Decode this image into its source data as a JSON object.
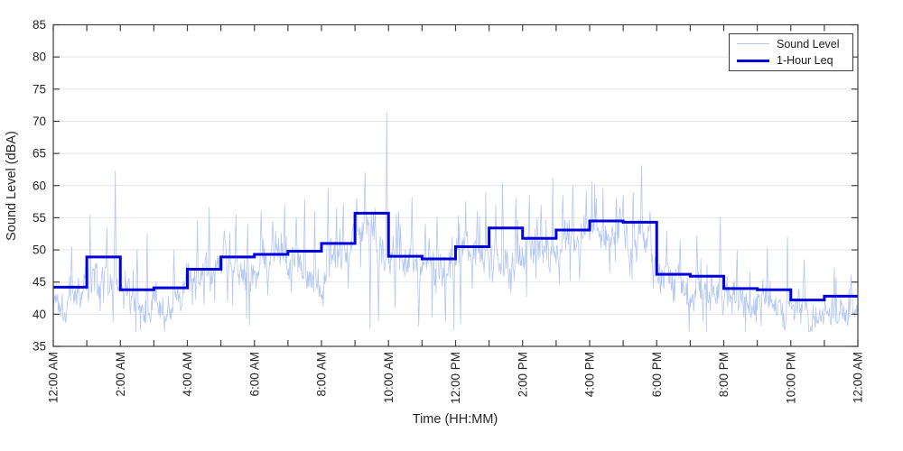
{
  "chart_data": {
    "type": "line",
    "title": "",
    "xlabel": "Time (HH:MM)",
    "ylabel": "Sound Level (dBA)",
    "ylim": [
      35,
      85
    ],
    "yticks": [
      35,
      40,
      45,
      50,
      55,
      60,
      65,
      70,
      75,
      80,
      85
    ],
    "x_hours_range": [
      0,
      24
    ],
    "x_minor_tick_hours": 1,
    "x_major_label_every_hours": 2,
    "xtick_labels": [
      "12:00 AM",
      "2:00 AM",
      "4:00 AM",
      "6:00 AM",
      "8:00 AM",
      "10:00 AM",
      "12:00 PM",
      "2:00 PM",
      "4:00 PM",
      "6:00 PM",
      "8:00 PM",
      "10:00 PM",
      "12:00 AM"
    ],
    "grid": "horizontal-only",
    "axis_color": "#3f3f3f",
    "grid_color": "#e4e4e4",
    "text_color": "#262626",
    "background": "#ffffff",
    "legend": {
      "position": "top-right",
      "entries": [
        {
          "label": "Sound Level",
          "swatch_color": "#b3c7f1",
          "swatch_style": "thin"
        },
        {
          "label": "1-Hour Leq",
          "swatch_color": "#0000dc",
          "swatch_style": "thick"
        }
      ]
    },
    "series": [
      {
        "name": "Sound Level",
        "kind": "minute_trace_synthesized",
        "color": "#b3c7f1",
        "line_width": 0.8,
        "points_per_hour": 60,
        "synthesis": {
          "seed": 1337,
          "baseline_offset_dba": -1.7,
          "wander_step": 1.1,
          "wander_decay": 0.93,
          "jitter_amp_by_hour": [
            1.6,
            2.2,
            1.7,
            1.5,
            1.7,
            1.9,
            2.0,
            2.0,
            2.2,
            2.4,
            2.4,
            2.6,
            2.2,
            2.2,
            2.2,
            2.2,
            2.0,
            2.3,
            2.2,
            2.0,
            1.9,
            1.7,
            1.7,
            1.6
          ],
          "random_spike_prob": 0.03,
          "random_dip_prob": 0.03,
          "clamp_dba": [
            37.3,
            71.3
          ],
          "spikes_hour_dba": [
            [
              0.55,
              50.5
            ],
            [
              1.1,
              55.5
            ],
            [
              1.6,
              53.5
            ],
            [
              1.85,
              62.3
            ],
            [
              2.5,
              50.0
            ],
            [
              2.8,
              52.5
            ],
            [
              3.6,
              50.0
            ],
            [
              4.3,
              54.5
            ],
            [
              4.65,
              56.6
            ],
            [
              5.1,
              53.0
            ],
            [
              5.45,
              55.5
            ],
            [
              5.8,
              54.0
            ],
            [
              6.2,
              56.0
            ],
            [
              6.55,
              54.5
            ],
            [
              6.9,
              57.0
            ],
            [
              7.25,
              55.0
            ],
            [
              7.5,
              57.8
            ],
            [
              7.8,
              56.0
            ],
            [
              8.2,
              59.5
            ],
            [
              8.45,
              56.5
            ],
            [
              8.65,
              57.2
            ],
            [
              9.05,
              58.0
            ],
            [
              9.3,
              62.0
            ],
            [
              9.6,
              56.5
            ],
            [
              9.95,
              71.3
            ],
            [
              10.3,
              56.0
            ],
            [
              10.7,
              58.2
            ],
            [
              11.1,
              54.0
            ],
            [
              11.45,
              55.2
            ],
            [
              12.3,
              57.5
            ],
            [
              12.65,
              56.0
            ],
            [
              12.9,
              59.0
            ],
            [
              13.2,
              57.0
            ],
            [
              13.4,
              60.5
            ],
            [
              13.8,
              58.0
            ],
            [
              14.2,
              58.5
            ],
            [
              14.55,
              57.0
            ],
            [
              14.9,
              61.2
            ],
            [
              15.2,
              58.5
            ],
            [
              15.5,
              60.0
            ],
            [
              15.9,
              59.2
            ],
            [
              16.2,
              58.0
            ],
            [
              16.4,
              59.6
            ],
            [
              16.8,
              58.0
            ],
            [
              17.0,
              58.5
            ],
            [
              17.3,
              59.0
            ],
            [
              17.55,
              63.1
            ],
            [
              17.8,
              56.0
            ],
            [
              18.3,
              53.0
            ],
            [
              18.7,
              51.5
            ],
            [
              19.2,
              52.2
            ],
            [
              19.9,
              55.0
            ],
            [
              20.4,
              50.0
            ],
            [
              21.3,
              50.3
            ],
            [
              21.9,
              52.0
            ],
            [
              22.4,
              48.5
            ],
            [
              23.3,
              47.2
            ],
            [
              23.8,
              46.0
            ]
          ],
          "dips_hour_dba": [
            [
              0.35,
              40.2
            ],
            [
              0.8,
              41.0
            ],
            [
              1.4,
              40.5
            ],
            [
              1.78,
              38.8
            ],
            [
              2.3,
              40.0
            ],
            [
              2.9,
              38.7
            ],
            [
              3.3,
              39.6
            ],
            [
              3.8,
              40.5
            ],
            [
              4.5,
              41.5
            ],
            [
              5.2,
              42.0
            ],
            [
              6.4,
              43.0
            ],
            [
              7.1,
              43.5
            ],
            [
              8.0,
              43.0
            ],
            [
              8.8,
              44.0
            ],
            [
              9.45,
              37.7
            ],
            [
              9.7,
              39.0
            ],
            [
              10.2,
              41.0
            ],
            [
              10.9,
              38.1
            ],
            [
              11.3,
              39.5
            ],
            [
              11.7,
              38.8
            ],
            [
              11.95,
              37.5
            ],
            [
              12.15,
              38.5
            ],
            [
              12.5,
              44.0
            ],
            [
              13.1,
              45.0
            ],
            [
              13.6,
              44.0
            ],
            [
              14.4,
              45.5
            ],
            [
              15.1,
              44.8
            ],
            [
              15.7,
              45.5
            ],
            [
              16.6,
              46.5
            ],
            [
              17.2,
              46.0
            ],
            [
              17.9,
              44.0
            ],
            [
              18.5,
              42.0
            ],
            [
              19.0,
              41.0
            ],
            [
              19.6,
              40.5
            ],
            [
              20.25,
              40.0
            ],
            [
              20.6,
              39.5
            ],
            [
              21.1,
              40.0
            ],
            [
              21.6,
              39.8
            ],
            [
              22.2,
              40.2
            ],
            [
              22.7,
              39.8
            ],
            [
              23.1,
              40.5
            ],
            [
              23.55,
              39.3
            ],
            [
              23.9,
              39.6
            ]
          ]
        }
      },
      {
        "name": "1-Hour Leq",
        "kind": "hourly_step",
        "color": "#0000dc",
        "line_width": 3,
        "hourly_leq_dba": [
          44.2,
          48.9,
          43.8,
          44.1,
          47.0,
          48.9,
          49.3,
          49.8,
          51.0,
          55.7,
          49.0,
          48.6,
          50.5,
          53.4,
          51.8,
          53.1,
          54.5,
          54.3,
          46.2,
          45.9,
          44.0,
          43.8,
          42.2,
          42.8
        ]
      }
    ]
  }
}
